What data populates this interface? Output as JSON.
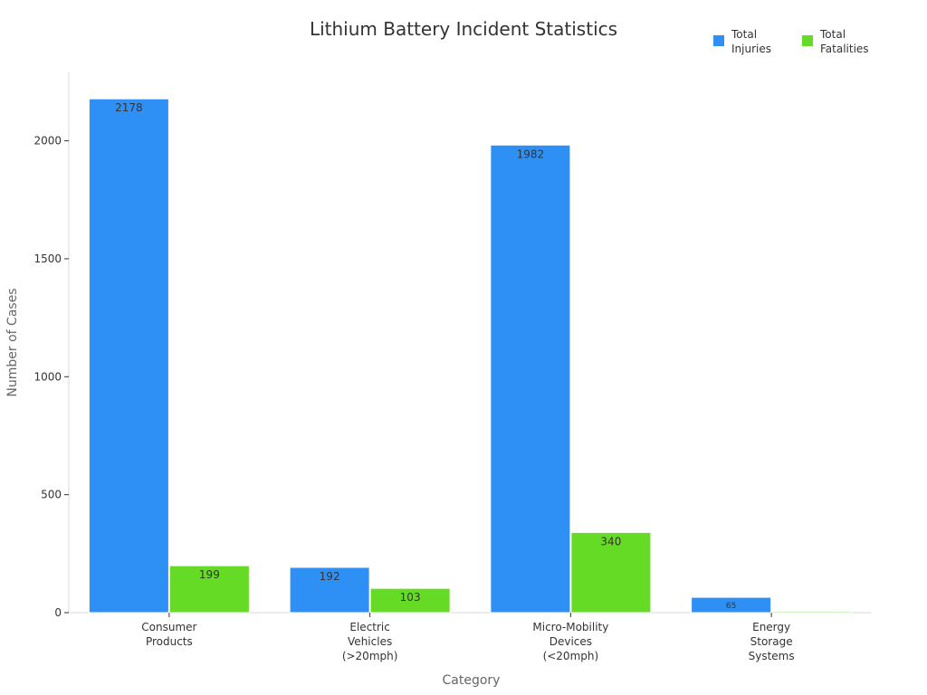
{
  "chart_data": {
    "type": "bar",
    "title": "Lithium Battery Incident Statistics",
    "xlabel": "Category",
    "ylabel": "Number of Cases",
    "categories": [
      [
        "Consumer",
        "Products"
      ],
      [
        "Electric",
        "Vehicles",
        "(>20mph)"
      ],
      [
        "Micro-Mobility",
        "Devices",
        "(<20mph)"
      ],
      [
        "Energy",
        "Storage",
        "Systems"
      ]
    ],
    "series": [
      {
        "name": "Total Injuries",
        "legend_lines": [
          "Total",
          "Injuries"
        ],
        "color": "#2e90f5",
        "values": [
          2178,
          192,
          1982,
          65
        ]
      },
      {
        "name": "Total Fatalities",
        "legend_lines": [
          "Total",
          "Fatalities"
        ],
        "color": "#66db26",
        "values": [
          199,
          103,
          340,
          5
        ]
      }
    ],
    "data_labels": [
      [
        "2178",
        "192",
        "1982",
        "65"
      ],
      [
        "199",
        "103",
        "340",
        ""
      ]
    ],
    "ylim": [
      0,
      2290
    ],
    "yticks": [
      0,
      500,
      1000,
      1500,
      2000
    ],
    "grid": false,
    "legend_position": "top-right"
  }
}
